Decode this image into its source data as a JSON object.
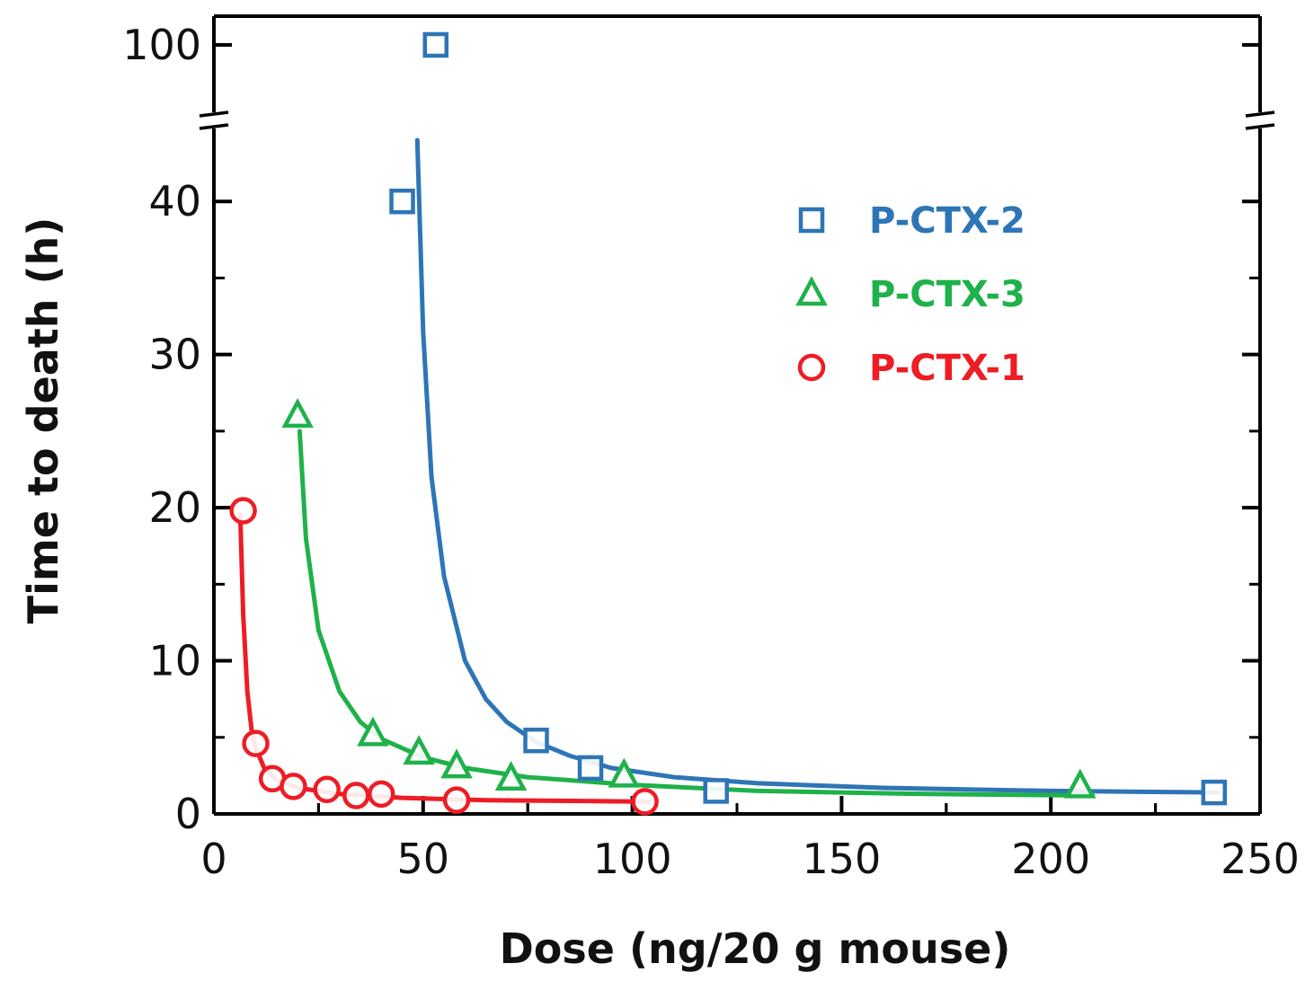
{
  "chart_data": {
    "type": "scatter",
    "title": "",
    "xlabel": "Dose (ng/20 g mouse)",
    "ylabel": "Time to death (h)",
    "xlim": [
      0,
      250
    ],
    "ylim": [
      0,
      100
    ],
    "y_axis_break": [
      45,
      100
    ],
    "x_ticks": [
      "0",
      "50",
      "100",
      "150",
      "200",
      "250"
    ],
    "y_ticks": [
      "0",
      "10",
      "20",
      "30",
      "40",
      "100"
    ],
    "grid": false,
    "legend": "top-right",
    "series": [
      {
        "name": "P-CTX-2",
        "color": "#2e75b6",
        "marker": "square",
        "points": [
          {
            "x": 45,
            "y": 40
          },
          {
            "x": 53,
            "y": 100
          },
          {
            "x": 77,
            "y": 4.8
          },
          {
            "x": 90,
            "y": 3.0
          },
          {
            "x": 120,
            "y": 1.5
          },
          {
            "x": 239,
            "y": 1.4
          }
        ],
        "fit": [
          {
            "x": 48.6,
            "y": 44
          },
          {
            "x": 50,
            "y": 31.5
          },
          {
            "x": 52,
            "y": 22
          },
          {
            "x": 55,
            "y": 15.5
          },
          {
            "x": 60,
            "y": 10
          },
          {
            "x": 65,
            "y": 7.5
          },
          {
            "x": 70,
            "y": 6
          },
          {
            "x": 77,
            "y": 4.7
          },
          {
            "x": 85,
            "y": 3.8
          },
          {
            "x": 95,
            "y": 3.0
          },
          {
            "x": 110,
            "y": 2.4
          },
          {
            "x": 130,
            "y": 2.0
          },
          {
            "x": 160,
            "y": 1.7
          },
          {
            "x": 200,
            "y": 1.5
          },
          {
            "x": 240,
            "y": 1.4
          }
        ]
      },
      {
        "name": "P-CTX-3",
        "color": "#1fb14a",
        "marker": "triangle",
        "points": [
          {
            "x": 20,
            "y": 26
          },
          {
            "x": 38,
            "y": 5.2
          },
          {
            "x": 49,
            "y": 4.0
          },
          {
            "x": 58,
            "y": 3.1
          },
          {
            "x": 71,
            "y": 2.3
          },
          {
            "x": 98,
            "y": 2.5
          },
          {
            "x": 207,
            "y": 1.8
          }
        ],
        "fit": [
          {
            "x": 20.5,
            "y": 25
          },
          {
            "x": 22,
            "y": 18
          },
          {
            "x": 25,
            "y": 12
          },
          {
            "x": 30,
            "y": 8
          },
          {
            "x": 35,
            "y": 6
          },
          {
            "x": 40,
            "y": 4.9
          },
          {
            "x": 50,
            "y": 3.7
          },
          {
            "x": 60,
            "y": 3.0
          },
          {
            "x": 75,
            "y": 2.4
          },
          {
            "x": 100,
            "y": 1.9
          },
          {
            "x": 130,
            "y": 1.5
          },
          {
            "x": 170,
            "y": 1.3
          },
          {
            "x": 210,
            "y": 1.2
          }
        ]
      },
      {
        "name": "P-CTX-1",
        "color": "#ee1c24",
        "marker": "circle",
        "points": [
          {
            "x": 7,
            "y": 19.8
          },
          {
            "x": 10,
            "y": 4.6
          },
          {
            "x": 14,
            "y": 2.3
          },
          {
            "x": 19,
            "y": 1.8
          },
          {
            "x": 27,
            "y": 1.6
          },
          {
            "x": 34,
            "y": 1.2
          },
          {
            "x": 40,
            "y": 1.3
          },
          {
            "x": 58,
            "y": 0.9
          },
          {
            "x": 103,
            "y": 0.8
          }
        ],
        "fit": [
          {
            "x": 6.3,
            "y": 19.5
          },
          {
            "x": 7,
            "y": 13
          },
          {
            "x": 8,
            "y": 8
          },
          {
            "x": 9,
            "y": 5.5
          },
          {
            "x": 10,
            "y": 4.3
          },
          {
            "x": 12,
            "y": 3.0
          },
          {
            "x": 15,
            "y": 2.2
          },
          {
            "x": 20,
            "y": 1.7
          },
          {
            "x": 30,
            "y": 1.3
          },
          {
            "x": 45,
            "y": 1.05
          },
          {
            "x": 65,
            "y": 0.9
          },
          {
            "x": 85,
            "y": 0.85
          },
          {
            "x": 104,
            "y": 0.8
          }
        ]
      }
    ]
  }
}
